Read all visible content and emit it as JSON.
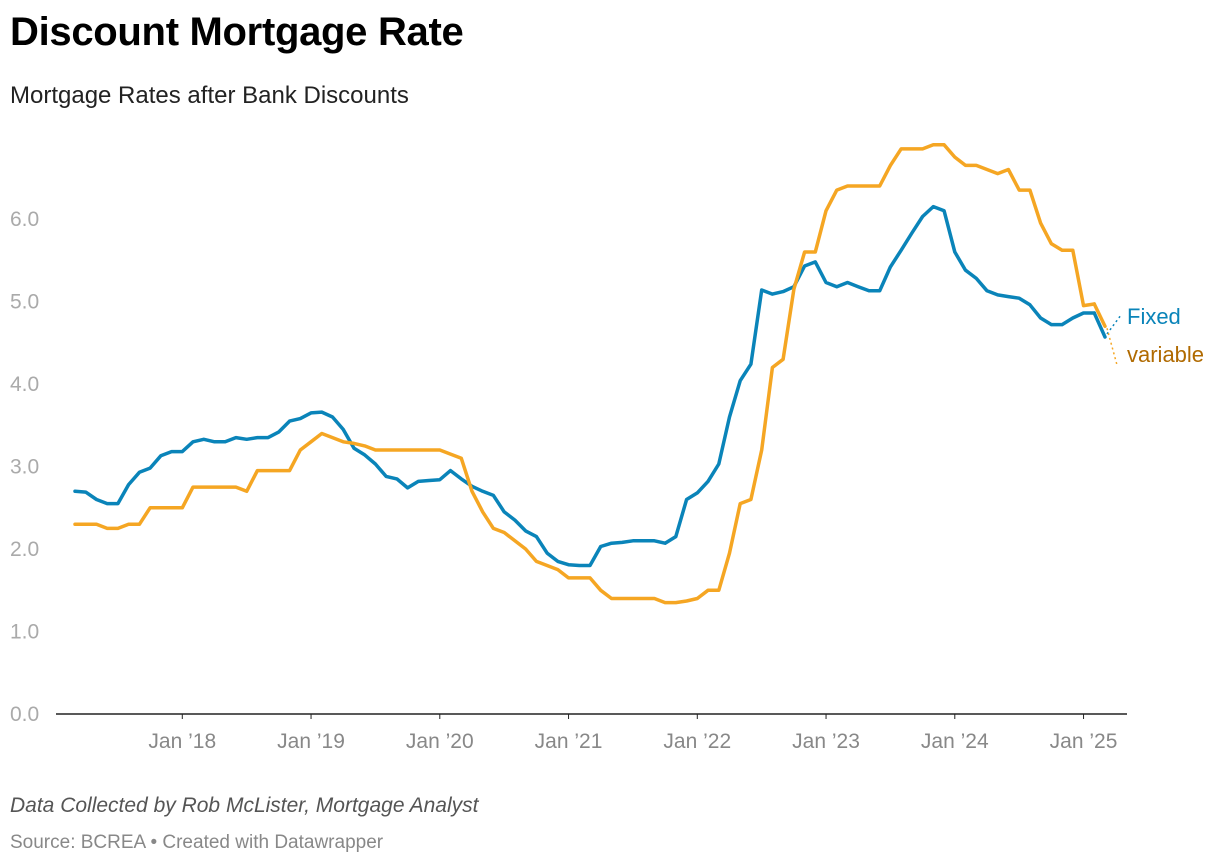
{
  "header": {
    "title": "Discount Mortgage Rate",
    "subtitle": "Mortgage Rates after Bank Discounts"
  },
  "footer": {
    "notes": "Data Collected by Rob McLister, Mortgage Analyst",
    "source": "Source: BCREA • Created with Datawrapper"
  },
  "colors": {
    "fixed": "#0a84b9",
    "variable": "#f5a623",
    "variable_label": "#b06a00"
  },
  "chart_data": {
    "type": "line",
    "title": "Discount Mortgage Rate",
    "subtitle": "Mortgage Rates after Bank Discounts",
    "xlabel": "",
    "ylabel": "",
    "ylim": [
      0,
      7
    ],
    "yticks": [
      0,
      1,
      2,
      3,
      4,
      5,
      6
    ],
    "ytick_labels": [
      "0.0",
      "1.0",
      "2.0",
      "3.0",
      "4.0",
      "5.0",
      "6.0"
    ],
    "xlim": [
      "2017-01",
      "2025-06"
    ],
    "xticks": [
      "2018-01",
      "2019-01",
      "2020-01",
      "2021-01",
      "2022-01",
      "2023-01",
      "2024-01",
      "2025-01"
    ],
    "xtick_labels": [
      "Jan ’18",
      "Jan ’19",
      "Jan ’20",
      "Jan ’21",
      "Jan ’22",
      "Jan ’23",
      "Jan ’24",
      "Jan ’25"
    ],
    "grid": false,
    "legend": "end-of-line labels",
    "series": [
      {
        "name": "Fixed",
        "color": "#0a84b9",
        "x": [
          "2017-03",
          "2017-04",
          "2017-05",
          "2017-06",
          "2017-07",
          "2017-08",
          "2017-09",
          "2017-10",
          "2017-11",
          "2017-12",
          "2018-01",
          "2018-02",
          "2018-03",
          "2018-04",
          "2018-05",
          "2018-06",
          "2018-07",
          "2018-08",
          "2018-09",
          "2018-10",
          "2018-11",
          "2018-12",
          "2019-01",
          "2019-02",
          "2019-03",
          "2019-04",
          "2019-05",
          "2019-06",
          "2019-07",
          "2019-08",
          "2019-09",
          "2019-10",
          "2019-11",
          "2019-12",
          "2020-01",
          "2020-02",
          "2020-03",
          "2020-04",
          "2020-05",
          "2020-06",
          "2020-07",
          "2020-08",
          "2020-09",
          "2020-10",
          "2020-11",
          "2020-12",
          "2021-01",
          "2021-02",
          "2021-03",
          "2021-04",
          "2021-05",
          "2021-06",
          "2021-07",
          "2021-08",
          "2021-09",
          "2021-10",
          "2021-11",
          "2021-12",
          "2022-01",
          "2022-02",
          "2022-03",
          "2022-04",
          "2022-05",
          "2022-06",
          "2022-07",
          "2022-08",
          "2022-09",
          "2022-10",
          "2022-11",
          "2022-12",
          "2023-01",
          "2023-02",
          "2023-03",
          "2023-04",
          "2023-05",
          "2023-06",
          "2023-07",
          "2023-08",
          "2023-09",
          "2023-10",
          "2023-11",
          "2023-12",
          "2024-01",
          "2024-02",
          "2024-03",
          "2024-04",
          "2024-05",
          "2024-06",
          "2024-07",
          "2024-08",
          "2024-09",
          "2024-10",
          "2024-11",
          "2024-12",
          "2025-01",
          "2025-02"
        ],
        "values": [
          2.7,
          2.69,
          2.6,
          2.55,
          2.55,
          2.78,
          2.93,
          2.98,
          3.13,
          3.18,
          3.18,
          3.3,
          3.33,
          3.3,
          3.3,
          3.35,
          3.33,
          3.35,
          3.35,
          3.42,
          3.55,
          3.58,
          3.65,
          3.66,
          3.6,
          3.45,
          3.22,
          3.14,
          3.03,
          2.88,
          2.85,
          2.74,
          2.82,
          2.83,
          2.84,
          2.95,
          2.85,
          2.76,
          2.7,
          2.65,
          2.45,
          2.35,
          2.22,
          2.15,
          1.95,
          1.85,
          1.81,
          1.8,
          1.8,
          2.03,
          2.07,
          2.08,
          2.1,
          2.1,
          2.1,
          2.07,
          2.15,
          2.6,
          2.68,
          2.82,
          3.03,
          3.6,
          4.04,
          4.24,
          5.14,
          5.09,
          5.12,
          5.18,
          5.43,
          5.48,
          5.23,
          5.18,
          5.23,
          5.18,
          5.13,
          5.13,
          5.42,
          5.62,
          5.83,
          6.03,
          6.15,
          6.1,
          5.6,
          5.38,
          5.28,
          5.13,
          5.08,
          5.06,
          5.04,
          4.96,
          4.8,
          4.72,
          4.72,
          4.8,
          4.86,
          4.86
        ]
      },
      {
        "name": "variable",
        "color": "#f5a623",
        "x": [
          "2017-03",
          "2017-04",
          "2017-05",
          "2017-06",
          "2017-07",
          "2017-08",
          "2017-09",
          "2017-10",
          "2017-11",
          "2017-12",
          "2018-01",
          "2018-02",
          "2018-03",
          "2018-04",
          "2018-05",
          "2018-06",
          "2018-07",
          "2018-08",
          "2018-09",
          "2018-10",
          "2018-11",
          "2018-12",
          "2019-01",
          "2019-02",
          "2019-03",
          "2019-04",
          "2019-05",
          "2019-06",
          "2019-07",
          "2019-08",
          "2019-09",
          "2019-10",
          "2019-11",
          "2019-12",
          "2020-01",
          "2020-02",
          "2020-03",
          "2020-04",
          "2020-05",
          "2020-06",
          "2020-07",
          "2020-08",
          "2020-09",
          "2020-10",
          "2020-11",
          "2020-12",
          "2021-01",
          "2021-02",
          "2021-03",
          "2021-04",
          "2021-05",
          "2021-06",
          "2021-07",
          "2021-08",
          "2021-09",
          "2021-10",
          "2021-11",
          "2021-12",
          "2022-01",
          "2022-02",
          "2022-03",
          "2022-04",
          "2022-05",
          "2022-06",
          "2022-07",
          "2022-08",
          "2022-09",
          "2022-10",
          "2022-11",
          "2022-12",
          "2023-01",
          "2023-02",
          "2023-03",
          "2023-04",
          "2023-05",
          "2023-06",
          "2023-07",
          "2023-08",
          "2023-09",
          "2023-10",
          "2023-11",
          "2023-12",
          "2024-01",
          "2024-02",
          "2024-03",
          "2024-04",
          "2024-05",
          "2024-06",
          "2024-07",
          "2024-08",
          "2024-09",
          "2024-10",
          "2024-11",
          "2024-12",
          "2025-01",
          "2025-02"
        ],
        "values": [
          2.3,
          2.3,
          2.3,
          2.25,
          2.25,
          2.3,
          2.3,
          2.5,
          2.5,
          2.5,
          2.5,
          2.75,
          2.75,
          2.75,
          2.75,
          2.75,
          2.7,
          2.95,
          2.95,
          2.95,
          2.95,
          3.2,
          3.3,
          3.4,
          3.35,
          3.3,
          3.28,
          3.25,
          3.2,
          3.2,
          3.2,
          3.2,
          3.2,
          3.2,
          3.2,
          3.15,
          3.1,
          2.7,
          2.45,
          2.25,
          2.2,
          2.1,
          2.0,
          1.85,
          1.8,
          1.75,
          1.65,
          1.65,
          1.65,
          1.5,
          1.4,
          1.4,
          1.4,
          1.4,
          1.4,
          1.35,
          1.35,
          1.37,
          1.4,
          1.5,
          1.5,
          1.95,
          2.55,
          2.6,
          3.2,
          4.2,
          4.3,
          5.15,
          5.6,
          5.6,
          6.1,
          6.35,
          6.4,
          6.4,
          6.4,
          6.4,
          6.65,
          6.85,
          6.85,
          6.85,
          6.9,
          6.9,
          6.75,
          6.65,
          6.65,
          6.6,
          6.55,
          6.6,
          6.35,
          6.35,
          5.95,
          5.7,
          5.62,
          5.62,
          4.95,
          4.97
        ]
      }
    ],
    "end_points": [
      {
        "name": "Fixed",
        "x": "2025-03",
        "value": 4.57
      },
      {
        "name": "variable",
        "x": "2025-03",
        "value": 4.7
      }
    ]
  }
}
